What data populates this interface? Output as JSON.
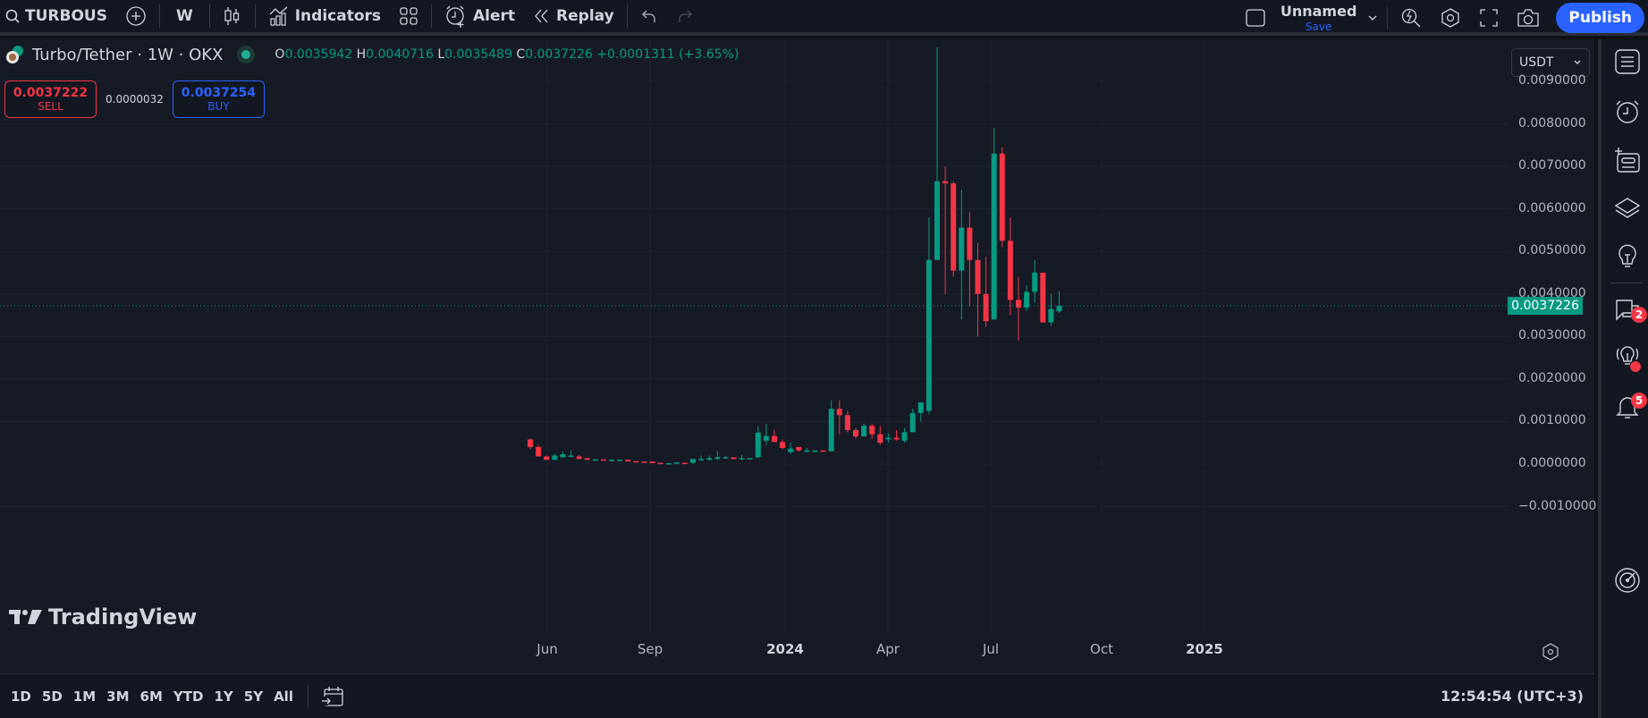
{
  "topbar": {
    "symbol": "TURBOUS",
    "interval": "W",
    "indicators_label": "Indicators",
    "alert_label": "Alert",
    "replay_label": "Replay",
    "layout_name": "Unnamed",
    "layout_save": "Save",
    "publish_label": "Publish"
  },
  "legend": {
    "title": "Turbo/Tether · 1W · OKX",
    "o_label": "O",
    "o": "0.0035942",
    "h_label": "H",
    "h": "0.0040716",
    "l_label": "L",
    "l": "0.0035489",
    "c_label": "C",
    "c": "0.0037226",
    "change": "+0.0001311 (+3.65%)"
  },
  "trade": {
    "sell_price": "0.0037222",
    "sell_label": "SELL",
    "spread": "0.0000032",
    "buy_price": "0.0037254",
    "buy_label": "BUY"
  },
  "price_scale": {
    "currency": "USDT",
    "labels": [
      "0.0090000",
      "0.0080000",
      "0.0070000",
      "0.0060000",
      "0.0050000",
      "0.0040000",
      "0.0030000",
      "0.0020000",
      "0.0010000",
      "0.0000000",
      "−0.0010000"
    ],
    "last_price": "0.0037226"
  },
  "time_axis": {
    "labels": [
      {
        "text": "Jun",
        "bold": false
      },
      {
        "text": "Sep",
        "bold": false
      },
      {
        "text": "2024",
        "bold": true
      },
      {
        "text": "Apr",
        "bold": false
      },
      {
        "text": "Jul",
        "bold": false
      },
      {
        "text": "Oct",
        "bold": false
      },
      {
        "text": "2025",
        "bold": true
      }
    ]
  },
  "bottombar": {
    "ranges": [
      "1D",
      "5D",
      "1M",
      "3M",
      "6M",
      "YTD",
      "1Y",
      "5Y",
      "All"
    ],
    "clock": "12:54:54 (UTC+3)"
  },
  "branding": {
    "logo_text": "TradingView"
  },
  "right_sidebar": {
    "chat_badge": "2",
    "alerts_badge": "5"
  },
  "colors": {
    "up": "#089981",
    "down": "#f23645",
    "accent": "#2962ff",
    "background": "#161a25"
  },
  "chart_data": {
    "type": "candlestick",
    "title": "Turbo/Tether · 1W · OKX",
    "xlabel": "",
    "ylabel": "USDT",
    "ylim": [
      -0.0015,
      0.0098
    ],
    "grid": true,
    "x_ticks": [
      "Jun",
      "Sep",
      "2024",
      "Apr",
      "Jul",
      "Oct",
      "2025"
    ],
    "y_ticks": [
      -0.001,
      0,
      0.001,
      0.002,
      0.003,
      0.004,
      0.005,
      0.006,
      0.007,
      0.008,
      0.009
    ],
    "last_price": 0.0037226,
    "candles": [
      {
        "o": 0.00058,
        "h": 0.0006,
        "l": 0.00035,
        "c": 0.0004
      },
      {
        "o": 0.0004,
        "h": 0.00045,
        "l": 0.00018,
        "c": 0.00018
      },
      {
        "o": 0.00018,
        "h": 0.0002,
        "l": 0.0001,
        "c": 0.0001
      },
      {
        "o": 0.0001,
        "h": 0.00025,
        "l": 0.0001,
        "c": 0.0002
      },
      {
        "o": 0.00016,
        "h": 0.0003,
        "l": 0.00015,
        "c": 0.00023
      },
      {
        "o": 0.0002,
        "h": 0.00032,
        "l": 0.00018,
        "c": 0.0002
      },
      {
        "o": 0.00018,
        "h": 0.00022,
        "l": 0.00012,
        "c": 0.00012
      },
      {
        "o": 0.00014,
        "h": 0.00014,
        "l": 0.0001,
        "c": 0.0001
      },
      {
        "o": 0.0001,
        "h": 0.00012,
        "l": 9e-05,
        "c": 0.00011
      },
      {
        "o": 0.00011,
        "h": 0.00011,
        "l": 8e-05,
        "c": 8e-05
      },
      {
        "o": 8e-05,
        "h": 0.00012,
        "l": 6e-05,
        "c": 0.0001
      },
      {
        "o": 8e-05,
        "h": 0.00011,
        "l": 7e-05,
        "c": 0.0001
      },
      {
        "o": 0.0001,
        "h": 0.00011,
        "l": 6e-05,
        "c": 6e-05
      },
      {
        "o": 7e-05,
        "h": 7e-05,
        "l": 6e-05,
        "c": 6e-05
      },
      {
        "o": 6e-05,
        "h": 6e-05,
        "l": 5e-05,
        "c": 5e-05
      },
      {
        "o": 6e-05,
        "h": 6e-05,
        "l": 2e-05,
        "c": 2e-05
      },
      {
        "o": 3e-05,
        "h": 3e-05,
        "l": 2e-05,
        "c": 2e-05
      },
      {
        "o": 1e-05,
        "h": 3e-05,
        "l": 0.0,
        "c": 2e-05
      },
      {
        "o": 3e-05,
        "h": 4e-05,
        "l": 2e-05,
        "c": 4e-05
      },
      {
        "o": 3e-05,
        "h": 3e-05,
        "l": 2e-05,
        "c": 2e-05
      },
      {
        "o": 3e-05,
        "h": 0.00012,
        "l": 1e-05,
        "c": 0.00012
      },
      {
        "o": 0.0001,
        "h": 0.0002,
        "l": 8e-05,
        "c": 0.00012
      },
      {
        "o": 0.0001,
        "h": 0.0002,
        "l": 8e-05,
        "c": 0.00014
      },
      {
        "o": 0.00012,
        "h": 0.0003,
        "l": 0.0001,
        "c": 0.00016
      },
      {
        "o": 0.00014,
        "h": 0.00019,
        "l": 0.00012,
        "c": 0.00016
      },
      {
        "o": 0.00016,
        "h": 0.00016,
        "l": 0.00012,
        "c": 0.00012
      },
      {
        "o": 0.00012,
        "h": 0.00022,
        "l": 0.0001,
        "c": 0.00014
      },
      {
        "o": 0.00014,
        "h": 0.00014,
        "l": 0.00013,
        "c": 0.00014
      },
      {
        "o": 0.00016,
        "h": 0.0009,
        "l": 0.00014,
        "c": 0.00074
      },
      {
        "o": 0.00055,
        "h": 0.00094,
        "l": 0.00045,
        "c": 0.00066
      },
      {
        "o": 0.00066,
        "h": 0.0008,
        "l": 0.00055,
        "c": 0.00052
      },
      {
        "o": 0.00052,
        "h": 0.00058,
        "l": 0.00035,
        "c": 0.00038
      },
      {
        "o": 0.00028,
        "h": 0.0005,
        "l": 0.00024,
        "c": 0.00036
      },
      {
        "o": 0.0004,
        "h": 0.0004,
        "l": 0.0003,
        "c": 0.00032
      },
      {
        "o": 0.00032,
        "h": 0.00038,
        "l": 0.00028,
        "c": 0.00032
      },
      {
        "o": 0.00032,
        "h": 0.00032,
        "l": 0.00028,
        "c": 0.00032
      },
      {
        "o": 0.00032,
        "h": 0.00032,
        "l": 0.0003,
        "c": 0.00031
      },
      {
        "o": 0.0003,
        "h": 0.0015,
        "l": 0.0003,
        "c": 0.0013
      },
      {
        "o": 0.0013,
        "h": 0.0015,
        "l": 0.0007,
        "c": 0.00115
      },
      {
        "o": 0.00115,
        "h": 0.00125,
        "l": 0.00075,
        "c": 0.0008
      },
      {
        "o": 0.0008,
        "h": 0.00085,
        "l": 0.0006,
        "c": 0.00065
      },
      {
        "o": 0.00065,
        "h": 0.00095,
        "l": 0.00065,
        "c": 0.0009
      },
      {
        "o": 0.0009,
        "h": 0.00095,
        "l": 0.0006,
        "c": 0.0007
      },
      {
        "o": 0.0007,
        "h": 0.0009,
        "l": 0.00045,
        "c": 0.0005
      },
      {
        "o": 0.00058,
        "h": 0.00072,
        "l": 0.0005,
        "c": 0.00062
      },
      {
        "o": 0.00062,
        "h": 0.0008,
        "l": 0.00055,
        "c": 0.00058
      },
      {
        "o": 0.00055,
        "h": 0.00085,
        "l": 0.0005,
        "c": 0.00075
      },
      {
        "o": 0.00075,
        "h": 0.0013,
        "l": 0.00075,
        "c": 0.0012
      },
      {
        "o": 0.0012,
        "h": 0.0014,
        "l": 0.001,
        "c": 0.00145
      },
      {
        "o": 0.00125,
        "h": 0.0058,
        "l": 0.00118,
        "c": 0.0048
      },
      {
        "o": 0.0048,
        "h": 0.0098,
        "l": 0.0048,
        "c": 0.00665
      },
      {
        "o": 0.00665,
        "h": 0.007,
        "l": 0.004,
        "c": 0.0066
      },
      {
        "o": 0.0066,
        "h": 0.00665,
        "l": 0.0044,
        "c": 0.00455
      },
      {
        "o": 0.00455,
        "h": 0.00645,
        "l": 0.0034,
        "c": 0.00556
      },
      {
        "o": 0.00556,
        "h": 0.00593,
        "l": 0.0037,
        "c": 0.0048
      },
      {
        "o": 0.0048,
        "h": 0.0052,
        "l": 0.003,
        "c": 0.004
      },
      {
        "o": 0.004,
        "h": 0.00488,
        "l": 0.00323,
        "c": 0.00336
      },
      {
        "o": 0.0034,
        "h": 0.0079,
        "l": 0.0034,
        "c": 0.0073
      },
      {
        "o": 0.0073,
        "h": 0.00745,
        "l": 0.0051,
        "c": 0.00525
      },
      {
        "o": 0.00525,
        "h": 0.0058,
        "l": 0.0035,
        "c": 0.00386
      },
      {
        "o": 0.00386,
        "h": 0.0044,
        "l": 0.0029,
        "c": 0.00368
      },
      {
        "o": 0.00368,
        "h": 0.0042,
        "l": 0.0036,
        "c": 0.00405
      },
      {
        "o": 0.00405,
        "h": 0.0048,
        "l": 0.0038,
        "c": 0.0045
      },
      {
        "o": 0.0045,
        "h": 0.00445,
        "l": 0.00333,
        "c": 0.00333
      },
      {
        "o": 0.00333,
        "h": 0.004,
        "l": 0.00325,
        "c": 0.00365
      },
      {
        "o": 0.00359,
        "h": 0.00407,
        "l": 0.00355,
        "c": 0.00372
      }
    ]
  }
}
